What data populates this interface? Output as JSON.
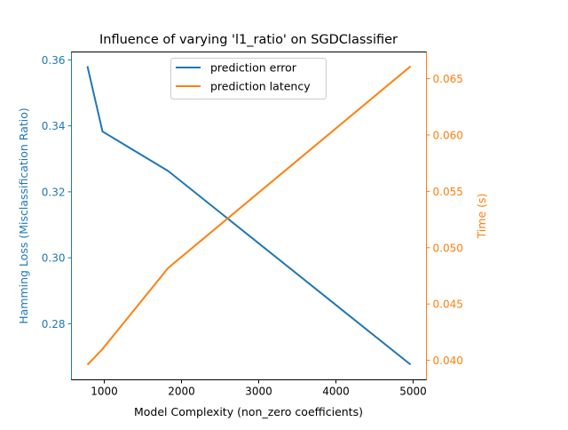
{
  "chart_data": {
    "type": "line",
    "title": "Influence of varying 'l1_ratio' on SGDClassifier",
    "xlabel": "Model Complexity (non_zero coefficients)",
    "ylabel_left": "Hamming Loss (Misclassification Ratio)",
    "ylabel_right": "Time (s)",
    "xlim": [
      575,
      5172
    ],
    "ylim_left": [
      0.263,
      0.3624
    ],
    "ylim_right": [
      0.03827,
      0.06737
    ],
    "x_ticks": [
      1000,
      2000,
      3000,
      4000,
      5000
    ],
    "x_tick_labels": [
      "1000",
      "2000",
      "3000",
      "4000",
      "5000"
    ],
    "y_left_ticks": [
      0.28,
      0.3,
      0.32,
      0.34,
      0.36
    ],
    "y_left_tick_labels": [
      "0.28",
      "0.30",
      "0.32",
      "0.34",
      "0.36"
    ],
    "y_right_ticks": [
      0.04,
      0.045,
      0.05,
      0.055,
      0.06,
      0.065
    ],
    "y_right_tick_labels": [
      "0.040",
      "0.045",
      "0.050",
      "0.055",
      "0.060",
      "0.065"
    ],
    "grid": false,
    "legend_position": "top-center",
    "series": [
      {
        "name": "prediction error",
        "axis": "left",
        "color": "#1f77b4",
        "x": [
          782,
          977,
          1828,
          4966
        ],
        "y": [
          0.3581,
          0.3383,
          0.3263,
          0.2676
        ]
      },
      {
        "name": "prediction latency",
        "axis": "right",
        "color": "#ff7f0e",
        "x": [
          782,
          977,
          1828,
          4966
        ],
        "y": [
          0.0396,
          0.041,
          0.0482,
          0.0661
        ]
      }
    ]
  }
}
